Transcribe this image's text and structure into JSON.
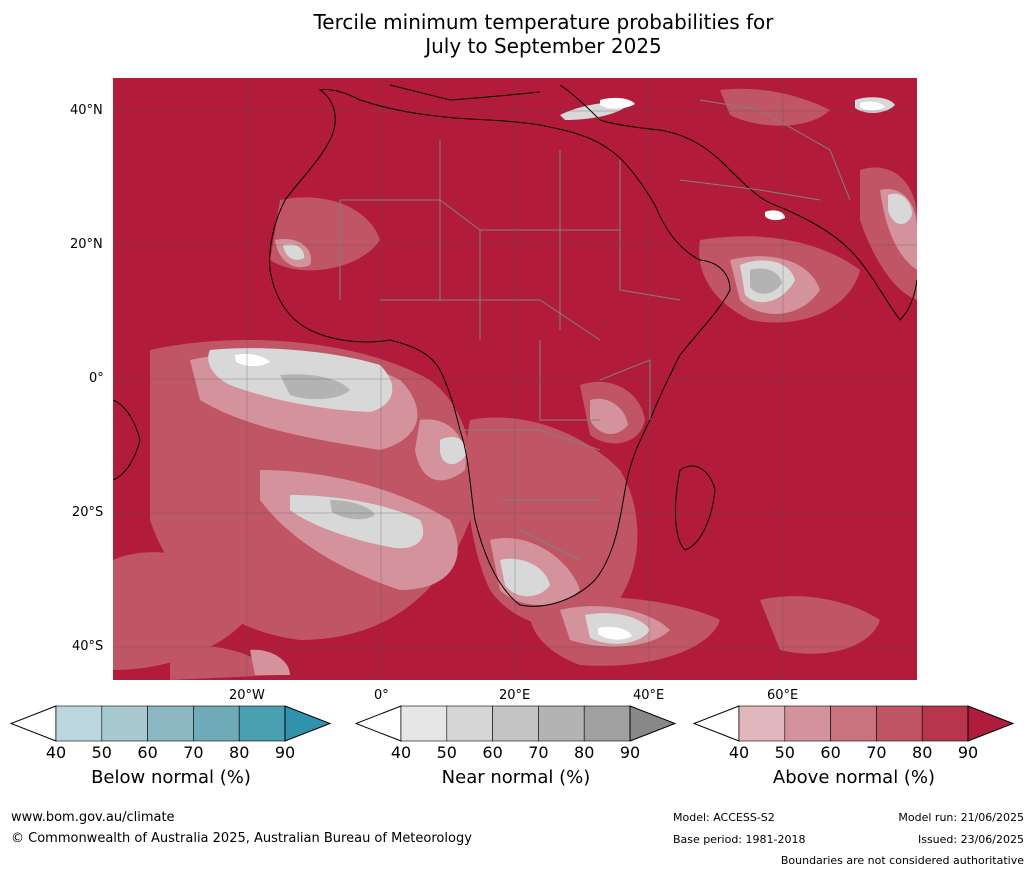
{
  "title_line1": "Tercile minimum temperature probabilities for",
  "title_line2": "July to September 2025",
  "lat_labels": [
    "40°N",
    "20°N",
    "0°",
    "20°S",
    "40°S"
  ],
  "lon_labels": [
    "20°W",
    "0°",
    "20°E",
    "40°E",
    "60°E"
  ],
  "colorbars": [
    {
      "name": "below",
      "title": "Below normal (%)",
      "ticks": [
        "40",
        "50",
        "60",
        "70",
        "80",
        "90"
      ],
      "colors": [
        "#bcd6dd",
        "#a8c9d0",
        "#8bb8c3",
        "#6eaab8",
        "#4a9fb0",
        "#2f93ad"
      ]
    },
    {
      "name": "near",
      "title": "Near normal (%)",
      "ticks": [
        "40",
        "50",
        "60",
        "70",
        "80",
        "90"
      ],
      "colors": [
        "#e6e6e6",
        "#d6d6d6",
        "#c4c4c4",
        "#b3b3b3",
        "#a0a0a0",
        "#888888"
      ]
    },
    {
      "name": "above",
      "title": "Above normal (%)",
      "ticks": [
        "40",
        "50",
        "60",
        "70",
        "80",
        "90"
      ],
      "colors": [
        "#e2b6bd",
        "#d4939c",
        "#c97380",
        "#c05565",
        "#b7364b",
        "#b01c3c"
      ]
    }
  ],
  "footer": {
    "website": "www.bom.gov.au/climate",
    "copyright": "© Commonwealth of Australia 2025, Australian Bureau of Meteorology",
    "model": "Model: ACCESS-S2",
    "base_period": "Base period: 1981-2018",
    "model_run": "Model run: 21/06/2025",
    "issued": "Issued: 23/06/2025",
    "disclaimer": "Boundaries are not considered authoritative"
  },
  "colors": {
    "above_dominant": "#b31b3b",
    "near_light": "#d8d8d8",
    "coast": "#000000",
    "borders": "#808080"
  }
}
